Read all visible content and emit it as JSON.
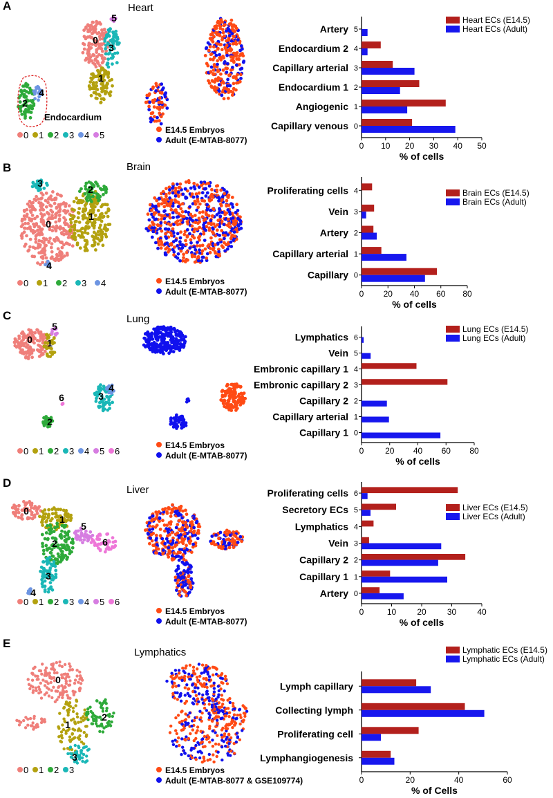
{
  "figure": {
    "colors": {
      "embryo": "#ff4a14",
      "adult": "#1010ee",
      "bar_embryo": "#b3201c",
      "bar_adult": "#1717ee",
      "cluster": [
        "#ef7f7a",
        "#b3a10f",
        "#2eaa3a",
        "#1ab7b7",
        "#6d95e2",
        "#d67de1",
        "#ee77d8"
      ],
      "endocardium_outline": "#dd2222"
    },
    "common": {
      "embryo_legend": "E14.5 Embryos",
      "adult_legend": "Adult (E-MTAB-8077)"
    }
  },
  "panels": [
    {
      "letter": "A",
      "title": "Heart",
      "cluster_labels": [
        "0",
        "1",
        "2",
        "3",
        "4",
        "5"
      ],
      "endocardium_note": "Endocardium",
      "adult_legend": "Adult (E-MTAB-8077)"
    },
    {
      "letter": "B",
      "title": "Brain",
      "cluster_labels": [
        "0",
        "1",
        "2",
        "3",
        "4"
      ],
      "adult_legend": "Adult (E-MTAB-8077)"
    },
    {
      "letter": "C",
      "title": "Lung",
      "cluster_labels": [
        "0",
        "1",
        "2",
        "3",
        "4",
        "5",
        "6"
      ],
      "adult_legend": "Adult (E-MTAB-8077)"
    },
    {
      "letter": "D",
      "title": "Liver",
      "cluster_labels": [
        "0",
        "1",
        "2",
        "3",
        "4",
        "5",
        "6"
      ],
      "adult_legend": "Adult (E-MTAB-8077)"
    },
    {
      "letter": "E",
      "title": "Lymphatics",
      "cluster_labels": [
        "0",
        "1",
        "2",
        "3"
      ],
      "adult_legend": "Adult (E-MTAB-8077 & GSE109774)"
    }
  ],
  "chart_data": [
    {
      "type": "bar",
      "orientation": "horizontal",
      "panel": "A",
      "categories": [
        "Artery",
        "Endocardium 2",
        "Capillary arterial",
        "Endocardium 1",
        "Angiogenic",
        "Capillary venous"
      ],
      "category_ids": [
        "5",
        "4",
        "3",
        "2",
        "1",
        "0"
      ],
      "series": [
        {
          "name": "Heart ECs (E14.5)",
          "values": [
            0,
            8,
            13,
            24,
            35,
            21
          ]
        },
        {
          "name": "Heart ECs (Adult)",
          "values": [
            2.5,
            2.5,
            22,
            16,
            19,
            39
          ]
        }
      ],
      "xlabel": "%  of cells",
      "xlim": [
        0,
        50
      ],
      "xticks": [
        "0",
        "10",
        "20",
        "30",
        "40",
        "50"
      ],
      "legend": "top-right"
    },
    {
      "type": "bar",
      "orientation": "horizontal",
      "panel": "B",
      "categories": [
        "Proliferating cells",
        "Vein",
        "Artery",
        "Capillary arterial",
        "Capillary"
      ],
      "category_ids": [
        "4",
        "3",
        "2",
        "1",
        "0"
      ],
      "series": [
        {
          "name": "Brain ECs (E14.5)",
          "values": [
            8,
            9.5,
            9,
            15,
            57
          ]
        },
        {
          "name": "Brain ECs (Adult)",
          "values": [
            0,
            3.5,
            11.5,
            34,
            48
          ]
        }
      ],
      "xlabel": "%  of cells",
      "xlim": [
        0,
        80
      ],
      "xticks": [
        "0",
        "20",
        "40",
        "60",
        "80"
      ],
      "legend": "top-right"
    },
    {
      "type": "bar",
      "orientation": "horizontal",
      "panel": "C",
      "categories": [
        "Lymphatics",
        "Vein",
        "Embronic capillary 1",
        "Embronic capillary 2",
        "Capillary 2",
        "Capillary arterial",
        "Capillary 1"
      ],
      "category_ids": [
        "6",
        "5",
        "4",
        "3",
        "2",
        "1",
        "0"
      ],
      "series": [
        {
          "name": "Lung ECs (E14.5)",
          "values": [
            0,
            0,
            39,
            61,
            0,
            0,
            0
          ]
        },
        {
          "name": "Lung ECs (Adult)",
          "values": [
            1.5,
            6.5,
            0,
            0,
            18,
            19.5,
            56
          ]
        }
      ],
      "xlabel": "%  of cells",
      "xlim": [
        0,
        80
      ],
      "xticks": [
        "0",
        "20",
        "40",
        "60",
        "80"
      ],
      "legend": "top-right"
    },
    {
      "type": "bar",
      "orientation": "horizontal",
      "panel": "D",
      "categories": [
        "Proliferating cells",
        "Secretory ECs",
        "Lymphatics",
        "Vein",
        "Capillary 2",
        "Capillary 1",
        "Artery"
      ],
      "category_ids": [
        "6",
        "5",
        "4",
        "3",
        "2",
        "1",
        "0"
      ],
      "series": [
        {
          "name": "Liver ECs (E14.5)",
          "values": [
            32,
            11.5,
            4,
            2.5,
            34.5,
            9.5,
            6
          ]
        },
        {
          "name": "Liver ECs (Adult)",
          "values": [
            2,
            3,
            0,
            26.5,
            25.5,
            28.5,
            14
          ]
        }
      ],
      "xlabel": "%  of cells",
      "xlim": [
        0,
        40
      ],
      "xticks": [
        "0",
        "10",
        "20",
        "30",
        "40"
      ],
      "legend": "top-right"
    },
    {
      "type": "bar",
      "orientation": "horizontal",
      "panel": "E",
      "categories": [
        "Lymph capillary",
        "Collecting lymph",
        "Proliferating cell",
        "Lymphangiogenesis"
      ],
      "category_ids": [
        "",
        "",
        "",
        ""
      ],
      "series": [
        {
          "name": "Lymphatic ECs (E14.5)",
          "values": [
            22.5,
            42.5,
            23.5,
            12
          ]
        },
        {
          "name": "Lymphatic ECs (Adult)",
          "values": [
            28.5,
            50.5,
            8,
            13.5
          ]
        }
      ],
      "xlabel": "% of Cells",
      "xlim": [
        0,
        60
      ],
      "xticks": [
        "0",
        "20",
        "40",
        "60"
      ],
      "legend": "top-right"
    }
  ]
}
